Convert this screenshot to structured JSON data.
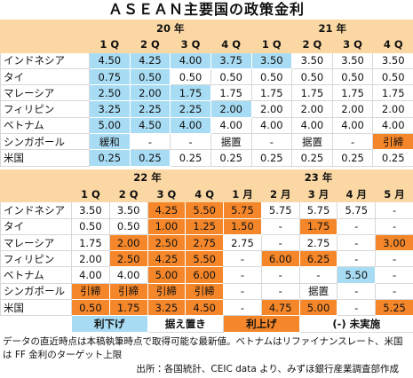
{
  "title": "ＡＳＥＡＮ主要国の政策金利",
  "tables": [
    {
      "groups": [
        {
          "label": "20 年",
          "columns": [
            "1 Q",
            "2 Q",
            "3 Q",
            "4 Q"
          ]
        },
        {
          "label": "21 年",
          "columns": [
            "1 Q",
            "2 Q",
            "3 Q",
            "4 Q"
          ]
        }
      ],
      "rows": [
        {
          "label": "インドネシア",
          "cells": [
            "4.50",
            "4.25",
            "4.00",
            "3.75",
            "3.50",
            "3.50",
            "3.50",
            "3.50"
          ],
          "colors": [
            "#a8dcf4",
            "#a8dcf4",
            "#a8dcf4",
            "#a8dcf4",
            "#a8dcf4",
            null,
            null,
            null
          ]
        },
        {
          "label": "タイ",
          "cells": [
            "0.75",
            "0.50",
            "0.50",
            "0.50",
            "0.50",
            "0.50",
            "0.50",
            "0.50"
          ],
          "colors": [
            "#a8dcf4",
            "#a8dcf4",
            null,
            null,
            null,
            null,
            null,
            null
          ]
        },
        {
          "label": "マレーシア",
          "cells": [
            "2.50",
            "2.00",
            "1.75",
            "1.75",
            "1.75",
            "1.75",
            "1.75",
            "1.75"
          ],
          "colors": [
            "#a8dcf4",
            "#a8dcf4",
            "#a8dcf4",
            null,
            null,
            null,
            null,
            null
          ]
        },
        {
          "label": "フィリピン",
          "cells": [
            "3.25",
            "2.25",
            "2.25",
            "2.00",
            "2.00",
            "2.00",
            "2.00",
            "2.00"
          ],
          "colors": [
            "#a8dcf4",
            "#a8dcf4",
            "#a8dcf4",
            "#a8dcf4",
            null,
            null,
            null,
            null
          ]
        },
        {
          "label": "ベトナム",
          "cells": [
            "5.00",
            "4.50",
            "4.00",
            "4.00",
            "4.00",
            "4.00",
            "4.00",
            "4.00"
          ],
          "colors": [
            "#a8dcf4",
            "#a8dcf4",
            "#a8dcf4",
            null,
            null,
            null,
            null,
            null
          ]
        },
        {
          "label": "シンガポール",
          "cells": [
            "緩和",
            "-",
            "-",
            "据置",
            "-",
            "据置",
            "-",
            "引締"
          ],
          "colors": [
            "#a8dcf4",
            null,
            null,
            null,
            null,
            null,
            null,
            "#f5872a"
          ]
        },
        {
          "label": "米国",
          "cells": [
            "0.25",
            "0.25",
            "0.25",
            "0.25",
            "0.25",
            "0.25",
            "0.25",
            "0.25"
          ],
          "colors": [
            "#a8dcf4",
            "#a8dcf4",
            null,
            null,
            null,
            null,
            null,
            null
          ]
        }
      ]
    },
    {
      "groups": [
        {
          "label": "22 年",
          "columns": [
            "1 Q",
            "2 Q",
            "3 Q",
            "4 Q"
          ]
        },
        {
          "label": "23 年",
          "columns": [
            "1 月",
            "2 月",
            "3 月",
            "4 月",
            "5 月"
          ]
        }
      ],
      "rows": [
        {
          "label": "インドネシア",
          "cells": [
            "3.50",
            "3.50",
            "4.25",
            "5.50",
            "5.75",
            "5.75",
            "5.75",
            "5.75",
            "-"
          ],
          "colors": [
            null,
            null,
            "#f5872a",
            "#f5872a",
            "#f5872a",
            null,
            null,
            null,
            null
          ]
        },
        {
          "label": "タイ",
          "cells": [
            "0.50",
            "0.50",
            "1.00",
            "1.25",
            "1.50",
            "-",
            "1.75",
            "-",
            "-"
          ],
          "colors": [
            null,
            null,
            "#f5872a",
            "#f5872a",
            "#f5872a",
            null,
            "#f5872a",
            null,
            null
          ]
        },
        {
          "label": "マレーシア",
          "cells": [
            "1.75",
            "2.00",
            "2.50",
            "2.75",
            "2.75",
            "-",
            "2.75",
            "-",
            "3.00"
          ],
          "colors": [
            null,
            "#f5872a",
            "#f5872a",
            "#f5872a",
            null,
            null,
            null,
            null,
            "#f5872a"
          ]
        },
        {
          "label": "フィリピン",
          "cells": [
            "2.00",
            "2.50",
            "4.25",
            "5.50",
            "-",
            "6.00",
            "6.25",
            "-",
            "-"
          ],
          "colors": [
            null,
            "#f5872a",
            "#f5872a",
            "#f5872a",
            null,
            "#f5872a",
            "#f5872a",
            null,
            null
          ]
        },
        {
          "label": "ベトナム",
          "cells": [
            "4.00",
            "4.00",
            "5.00",
            "6.00",
            "-",
            "-",
            "-",
            "5.50",
            "-"
          ],
          "colors": [
            null,
            null,
            "#f5872a",
            "#f5872a",
            null,
            null,
            null,
            "#a8dcf4",
            null
          ]
        },
        {
          "label": "シンガポール",
          "cells": [
            "引締",
            "引締",
            "引締",
            "引締",
            "-",
            "-",
            "据置",
            "-",
            "-"
          ],
          "colors": [
            "#f5872a",
            "#f5872a",
            "#f5872a",
            "#f5872a",
            null,
            null,
            null,
            null,
            null
          ]
        },
        {
          "label": "米国",
          "cells": [
            "0.50",
            "1.75",
            "3.25",
            "4.50",
            "-",
            "4.75",
            "5.00",
            "-",
            "5.25"
          ],
          "colors": [
            "#f5872a",
            "#f5872a",
            "#f5872a",
            "#f5872a",
            null,
            "#f5872a",
            "#f5872a",
            null,
            "#f5872a"
          ]
        }
      ]
    }
  ],
  "legend": [
    {
      "label": "利下げ",
      "color": "#a8dcf4"
    },
    {
      "label": "据え置き",
      "color": null
    },
    {
      "label": "利上げ",
      "color": "#f5872a"
    },
    {
      "label": "(-)  未実施",
      "color": null
    }
  ],
  "notes": [
    "データの直近時点は本稿執筆時点で取得可能な最新値。ベトナムはリファイナンスレート、米国は FF 金利のターゲット上限"
  ],
  "source": "出所：各国統計、CEIC data より、みずほ銀行産業調査部作成"
}
